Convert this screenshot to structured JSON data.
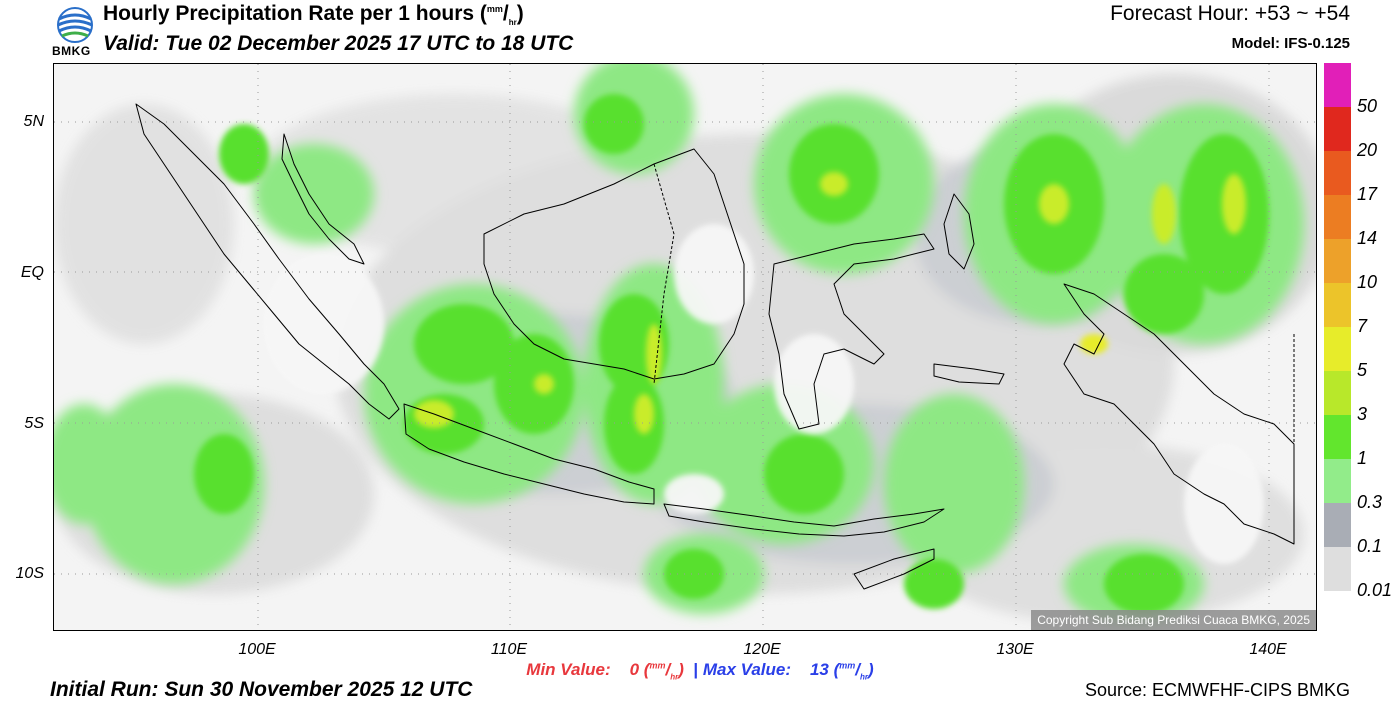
{
  "header": {
    "title_main": "Hourly Precipitation Rate per 1 hours (",
    "title_unit_sup": "mm",
    "title_unit_sub": "hr",
    "title_close": ")",
    "valid": "Valid: Tue 02 December 2025 17 UTC to 18 UTC",
    "forecast_hour": "Forecast Hour: +53 ~ +54",
    "model": "Model: IFS-0.125"
  },
  "logo": {
    "text": "BMKG"
  },
  "map": {
    "lat_labels": [
      "5N",
      "EQ",
      "5S",
      "10S"
    ],
    "lon_labels": [
      "100E",
      "110E",
      "120E",
      "130E",
      "140E"
    ],
    "copyright": "Copyright Sub Bidang Prediksi Cuaca BMKG, 2025"
  },
  "legend": {
    "labels": [
      "50",
      "20",
      "17",
      "14",
      "10",
      "7",
      "5",
      "3",
      "1",
      "0.3",
      "0.1",
      "0.01"
    ],
    "colors": [
      "#e11fb8",
      "#e0281e",
      "#e95a1f",
      "#ec7d22",
      "#eda12a",
      "#ecc42a",
      "#e7ec2a",
      "#b8e82a",
      "#62e62d",
      "#92ec8a",
      "#a9adb5",
      "#dedede"
    ]
  },
  "footer": {
    "min_label": "Min Value:",
    "min_value": "0",
    "sep": "|",
    "max_label": "Max Value:",
    "max_value": "13",
    "unit_sup": "mm",
    "unit_sub": "hr",
    "initial_run": "Initial Run: Sun 30 November 2025 12 UTC",
    "source": "Source: ECMWFHF-CIPS BMKG"
  }
}
